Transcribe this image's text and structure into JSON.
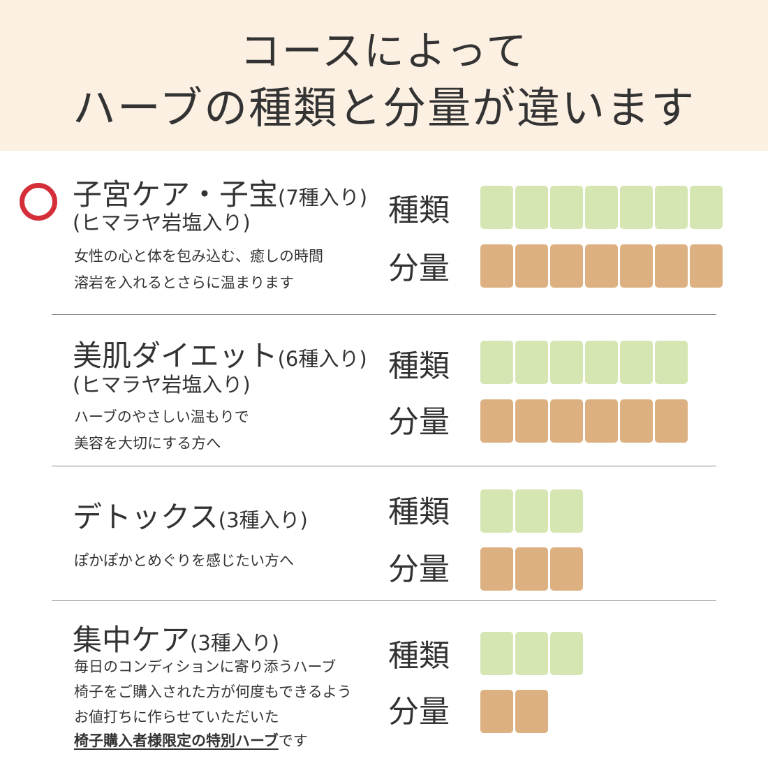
{
  "header": {
    "line1": "コースによって",
    "line2": "ハーブの種類と分量が違います"
  },
  "labels": {
    "kind": "種類",
    "amount": "分量"
  },
  "colors": {
    "header_bg": "#fcf0e3",
    "kind_block": "#d6e6b2",
    "amount_block": "#dcb080",
    "marker": "#d42f39"
  },
  "courses": [
    {
      "name": "子宮ケア・子宝",
      "count_text": "(7種入り)",
      "sub": "(ヒマラヤ岩塩入り)",
      "desc": [
        "女性の心と体を包み込む、癒しの時間",
        "溶岩を入れるとさらに温まります"
      ],
      "kinds": 7,
      "amount": 7
    },
    {
      "name": "美肌ダイエット",
      "count_text": "(6種入り)",
      "sub": "(ヒマラヤ岩塩入り)",
      "desc": [
        "ハーブのやさしい温もりで",
        "美容を大切にする方へ"
      ],
      "kinds": 6,
      "amount": 6
    },
    {
      "name": "デトックス",
      "count_text": "(3種入り)",
      "desc": [
        "ぽかぽかとめぐりを感じたい方へ"
      ],
      "kinds": 3,
      "amount": 3
    },
    {
      "name": "集中ケア",
      "count_text": "(3種入り)",
      "desc": [
        "毎日のコンディションに寄り添うハーブ",
        "椅子をご購入された方が何度もできるよう",
        "お値打ちに作らせていただいた"
      ],
      "desc_emphasis": "椅子購入者様限定の特別ハーブ",
      "desc_tail": "です",
      "kinds": 3,
      "amount": 2
    }
  ]
}
